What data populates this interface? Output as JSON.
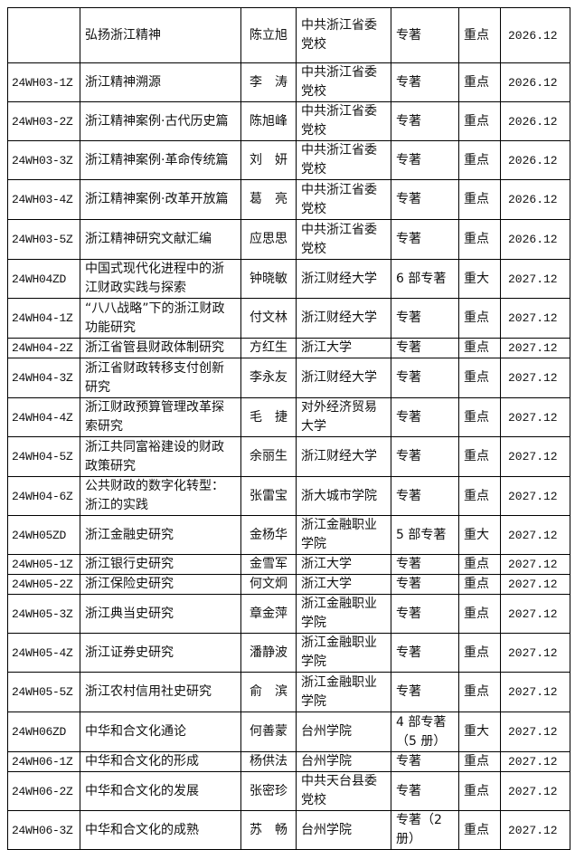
{
  "rows": [
    {
      "code": "",
      "title": "弘扬浙江精神",
      "leader": "陈立旭",
      "unit": "中共浙江省委党校",
      "form": "专著",
      "level": "重点",
      "date": "2026.12"
    },
    {
      "code": "24WH03-1Z",
      "title": "浙江精神溯源",
      "leader": "李　涛",
      "unit": "中共浙江省委党校",
      "form": "专著",
      "level": "重点",
      "date": "2026.12"
    },
    {
      "code": "24WH03-2Z",
      "title": "浙江精神案例·古代历史篇",
      "leader": "陈旭峰",
      "unit": "中共浙江省委党校",
      "form": "专著",
      "level": "重点",
      "date": "2026.12"
    },
    {
      "code": "24WH03-3Z",
      "title": "浙江精神案例·革命传统篇",
      "leader": "刘　妍",
      "unit": "中共浙江省委党校",
      "form": "专著",
      "level": "重点",
      "date": "2026.12"
    },
    {
      "code": "24WH03-4Z",
      "title": "浙江精神案例·改革开放篇",
      "leader": "葛　亮",
      "unit": "中共浙江省委党校",
      "form": "专著",
      "level": "重点",
      "date": "2026.12"
    },
    {
      "code": "24WH03-5Z",
      "title": "浙江精神研究文献汇编",
      "leader": "应思思",
      "unit": "中共浙江省委党校",
      "form": "专著",
      "level": "重点",
      "date": "2026.12"
    },
    {
      "code": "24WH04ZD",
      "title": "中国式现代化进程中的浙江财政实践与探索",
      "leader": "钟晓敏",
      "unit": "浙江财经大学",
      "form": "6 部专著",
      "level": "重大",
      "date": "2027.12"
    },
    {
      "code": "24WH04-1Z",
      "title": "“八八战略”下的浙江财政功能研究",
      "leader": "付文林",
      "unit": "浙江财经大学",
      "form": "专著",
      "level": "重点",
      "date": "2027.12"
    },
    {
      "code": "24WH04-2Z",
      "title": "浙江省管县财政体制研究",
      "leader": "方红生",
      "unit": "浙江大学",
      "form": "专著",
      "level": "重点",
      "date": "2027.12"
    },
    {
      "code": "24WH04-3Z",
      "title": "浙江省财政转移支付创新研究",
      "leader": "李永友",
      "unit": "浙江财经大学",
      "form": "专著",
      "level": "重点",
      "date": "2027.12"
    },
    {
      "code": "24WH04-4Z",
      "title": "浙江财政预算管理改革探索研究",
      "leader": "毛　捷",
      "unit": "对外经济贸易大学",
      "form": "专著",
      "level": "重点",
      "date": "2027.12"
    },
    {
      "code": "24WH04-5Z",
      "title": "浙江共同富裕建设的财政政策研究",
      "leader": "余丽生",
      "unit": "浙江财经大学",
      "form": "专著",
      "level": "重点",
      "date": "2027.12"
    },
    {
      "code": "24WH04-6Z",
      "title": "公共财政的数字化转型：浙江的实践",
      "leader": "张雷宝",
      "unit": "浙大城市学院",
      "form": "专著",
      "level": "重点",
      "date": "2027.12"
    },
    {
      "code": "24WH05ZD",
      "title": "浙江金融史研究",
      "leader": "金杨华",
      "unit": "浙江金融职业学院",
      "form": "5 部专著",
      "level": "重大",
      "date": "2027.12"
    },
    {
      "code": "24WH05-1Z",
      "title": "浙江银行史研究",
      "leader": "金雪军",
      "unit": "浙江大学",
      "form": "专著",
      "level": "重点",
      "date": "2027.12"
    },
    {
      "code": "24WH05-2Z",
      "title": "浙江保险史研究",
      "leader": "何文炯",
      "unit": "浙江大学",
      "form": "专著",
      "level": "重点",
      "date": "2027.12"
    },
    {
      "code": "24WH05-3Z",
      "title": "浙江典当史研究",
      "leader": "章金萍",
      "unit": "浙江金融职业学院",
      "form": "专著",
      "level": "重点",
      "date": "2027.12"
    },
    {
      "code": "24WH05-4Z",
      "title": "浙江证券史研究",
      "leader": "潘静波",
      "unit": "浙江金融职业学院",
      "form": "专著",
      "level": "重点",
      "date": "2027.12"
    },
    {
      "code": "24WH05-5Z",
      "title": "浙江农村信用社史研究",
      "leader": "俞　滨",
      "unit": "浙江金融职业学院",
      "form": "专著",
      "level": "重点",
      "date": "2027.12"
    },
    {
      "code": "24WH06ZD",
      "title": "中华和合文化通论",
      "leader": "何善蒙",
      "unit": "台州学院",
      "form": "4 部专著（5 册）",
      "level": "重大",
      "date": "2027.12"
    },
    {
      "code": "24WH06-1Z",
      "title": "中华和合文化的形成",
      "leader": "杨供法",
      "unit": "台州学院",
      "form": "专著",
      "level": "重点",
      "date": "2027.12"
    },
    {
      "code": "24WH06-2Z",
      "title": "中华和合文化的发展",
      "leader": "张密珍",
      "unit": "中共天台县委党校",
      "form": "专著",
      "level": "重点",
      "date": "2027.12"
    },
    {
      "code": "24WH06-3Z",
      "title": "中华和合文化的成熟",
      "leader": "苏　畅",
      "unit": "台州学院",
      "form": "专著（2 册）",
      "level": "重点",
      "date": "2027.12"
    }
  ]
}
